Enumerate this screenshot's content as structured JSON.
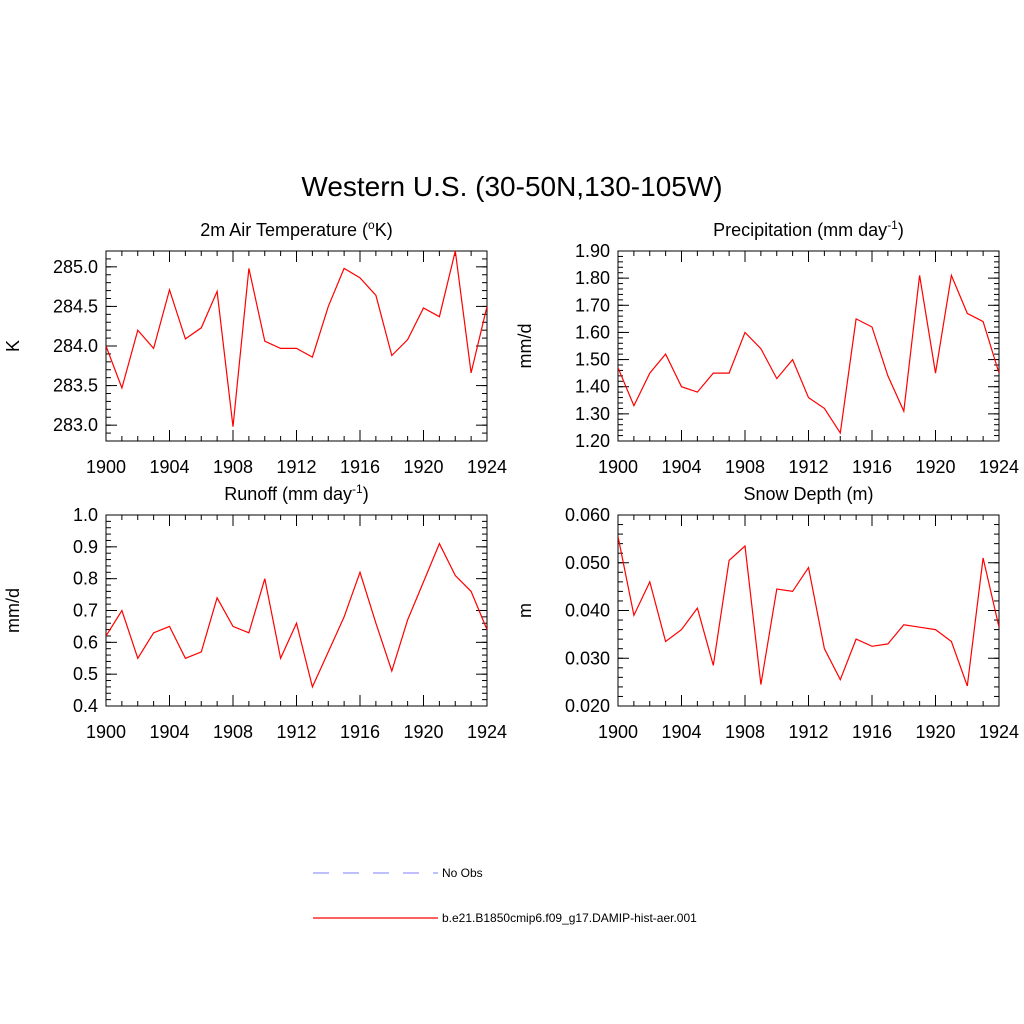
{
  "figure": {
    "title": "Western U.S. (30-50N,130-105W)"
  },
  "chart_data": [
    {
      "type": "line",
      "title": "2m Air Temperature (°K)",
      "title_parts": {
        "pre": "2m Air Temperature (",
        "sup": "o",
        "post": "K)"
      },
      "ylabel": "K",
      "xlim": [
        1900,
        1924
      ],
      "ylim": [
        282.8,
        285.2
      ],
      "xticks": [
        1900,
        1904,
        1908,
        1912,
        1916,
        1920,
        1924
      ],
      "yticks": [
        283.0,
        283.5,
        284.0,
        284.5,
        285.0
      ],
      "ytick_labels": [
        "283.0",
        "283.5",
        "284.0",
        "284.5",
        "285.0"
      ],
      "x": [
        1900,
        1901,
        1902,
        1903,
        1904,
        1905,
        1906,
        1907,
        1908,
        1909,
        1910,
        1911,
        1912,
        1913,
        1914,
        1915,
        1916,
        1917,
        1918,
        1919,
        1920,
        1921,
        1922,
        1923,
        1924
      ],
      "series": [
        {
          "name": "b.e21.B1850cmip6.f09_g17.DAMIP-hist-aer.001",
          "color": "#ff0000",
          "values": [
            284.0,
            283.47,
            284.2,
            283.97,
            284.71,
            284.09,
            284.23,
            284.69,
            282.98,
            284.98,
            284.06,
            283.97,
            283.97,
            283.86,
            284.5,
            284.98,
            284.86,
            284.64,
            283.88,
            284.08,
            284.48,
            284.37,
            285.2,
            283.66,
            284.5
          ]
        }
      ]
    },
    {
      "type": "line",
      "title": "Precipitation (mm day-1)",
      "title_parts": {
        "pre": "Precipitation (mm day",
        "sup": "-1",
        "post": ")"
      },
      "ylabel": "mm/d",
      "xlim": [
        1900,
        1924
      ],
      "ylim": [
        1.2,
        1.9
      ],
      "xticks": [
        1900,
        1904,
        1908,
        1912,
        1916,
        1920,
        1924
      ],
      "yticks": [
        1.2,
        1.3,
        1.4,
        1.5,
        1.6,
        1.7,
        1.8,
        1.9
      ],
      "ytick_labels": [
        "1.20",
        "1.30",
        "1.40",
        "1.50",
        "1.60",
        "1.70",
        "1.80",
        "1.90"
      ],
      "x": [
        1900,
        1901,
        1902,
        1903,
        1904,
        1905,
        1906,
        1907,
        1908,
        1909,
        1910,
        1911,
        1912,
        1913,
        1914,
        1915,
        1916,
        1917,
        1918,
        1919,
        1920,
        1921,
        1922,
        1923,
        1924
      ],
      "series": [
        {
          "name": "b.e21.B1850cmip6.f09_g17.DAMIP-hist-aer.001",
          "color": "#ff0000",
          "values": [
            1.47,
            1.33,
            1.45,
            1.52,
            1.4,
            1.38,
            1.45,
            1.45,
            1.6,
            1.54,
            1.43,
            1.5,
            1.36,
            1.32,
            1.23,
            1.65,
            1.62,
            1.44,
            1.31,
            1.81,
            1.45,
            1.81,
            1.67,
            1.64,
            1.45
          ]
        }
      ]
    },
    {
      "type": "line",
      "title": "Runoff (mm day-1)",
      "title_parts": {
        "pre": "Runoff (mm day",
        "sup": "-1",
        "post": ")"
      },
      "ylabel": "mm/d",
      "xlim": [
        1900,
        1924
      ],
      "ylim": [
        0.4,
        1.0
      ],
      "xticks": [
        1900,
        1904,
        1908,
        1912,
        1916,
        1920,
        1924
      ],
      "yticks": [
        0.4,
        0.5,
        0.6,
        0.7,
        0.8,
        0.9,
        1.0
      ],
      "ytick_labels": [
        "0.4",
        "0.5",
        "0.6",
        "0.7",
        "0.8",
        "0.9",
        "1.0"
      ],
      "x": [
        1900,
        1901,
        1902,
        1903,
        1904,
        1905,
        1906,
        1907,
        1908,
        1909,
        1910,
        1911,
        1912,
        1913,
        1914,
        1915,
        1916,
        1917,
        1918,
        1919,
        1920,
        1921,
        1922,
        1923,
        1924
      ],
      "series": [
        {
          "name": "b.e21.B1850cmip6.f09_g17.DAMIP-hist-aer.001",
          "color": "#ff0000",
          "values": [
            0.62,
            0.7,
            0.55,
            0.63,
            0.65,
            0.55,
            0.57,
            0.74,
            0.65,
            0.63,
            0.8,
            0.55,
            0.66,
            0.46,
            0.57,
            0.68,
            0.82,
            0.66,
            0.51,
            0.67,
            0.79,
            0.91,
            0.81,
            0.76,
            0.64
          ]
        }
      ]
    },
    {
      "type": "line",
      "title": "Snow Depth (m)",
      "title_parts": {
        "pre": "Snow Depth (m)",
        "sup": "",
        "post": ""
      },
      "ylabel": "m",
      "xlim": [
        1900,
        1924
      ],
      "ylim": [
        0.02,
        0.06
      ],
      "xticks": [
        1900,
        1904,
        1908,
        1912,
        1916,
        1920,
        1924
      ],
      "yticks": [
        0.02,
        0.03,
        0.04,
        0.05,
        0.06
      ],
      "ytick_labels": [
        "0.020",
        "0.030",
        "0.040",
        "0.050",
        "0.060"
      ],
      "x": [
        1900,
        1901,
        1902,
        1903,
        1904,
        1905,
        1906,
        1907,
        1908,
        1909,
        1910,
        1911,
        1912,
        1913,
        1914,
        1915,
        1916,
        1917,
        1918,
        1919,
        1920,
        1921,
        1922,
        1923,
        1924
      ],
      "series": [
        {
          "name": "b.e21.B1850cmip6.f09_g17.DAMIP-hist-aer.001",
          "color": "#ff0000",
          "values": [
            0.0555,
            0.039,
            0.046,
            0.0335,
            0.036,
            0.0405,
            0.0285,
            0.0505,
            0.0535,
            0.0245,
            0.0445,
            0.044,
            0.049,
            0.032,
            0.0255,
            0.034,
            0.0325,
            0.033,
            0.037,
            0.0365,
            0.036,
            0.0335,
            0.0242,
            0.051,
            0.0365
          ]
        }
      ]
    }
  ],
  "legend": {
    "items": [
      {
        "label": "No Obs",
        "color": "#9999ff",
        "style": "dashed"
      },
      {
        "label": "b.e21.B1850cmip6.f09_g17.DAMIP-hist-aer.001",
        "color": "#ff0000",
        "style": "solid"
      }
    ]
  }
}
